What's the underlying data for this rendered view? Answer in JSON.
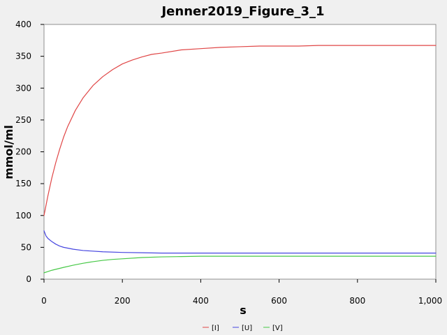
{
  "chart_data": {
    "type": "line",
    "title": "Jenner2019_Figure_3_1",
    "xlabel": "s",
    "ylabel": "mmol/ml",
    "xlim": [
      0,
      1000
    ],
    "ylim": [
      0,
      400
    ],
    "x_ticks": [
      0,
      200,
      400,
      600,
      800,
      1000
    ],
    "x_tick_labels": [
      "0",
      "200",
      "400",
      "600",
      "800",
      "1,000"
    ],
    "y_ticks": [
      0,
      50,
      100,
      150,
      200,
      250,
      300,
      350,
      400
    ],
    "y_tick_labels": [
      "0",
      "50",
      "100",
      "150",
      "200",
      "250",
      "300",
      "350",
      "400"
    ],
    "grid": false,
    "legend_position": "bottom",
    "series": [
      {
        "name": "[I]",
        "color": "#e04646",
        "x": [
          0,
          10,
          20,
          30,
          40,
          50,
          60,
          80,
          100,
          125,
          150,
          175,
          200,
          225,
          250,
          275,
          300,
          350,
          400,
          450,
          500,
          550,
          600,
          650,
          700,
          800,
          900,
          1000
        ],
        "values": [
          100,
          131,
          159,
          183,
          204,
          223,
          239,
          265,
          285,
          304,
          318,
          329,
          338,
          344,
          349,
          353,
          355,
          360,
          362,
          364,
          365,
          366,
          366,
          366,
          367,
          367,
          367,
          367
        ]
      },
      {
        "name": "[U]",
        "color": "#4646e0",
        "x": [
          0,
          5,
          10,
          20,
          30,
          40,
          50,
          75,
          100,
          150,
          200,
          250,
          300,
          350,
          400,
          500,
          600,
          700,
          800,
          900,
          1000
        ],
        "values": [
          76,
          68,
          64,
          59,
          55,
          52,
          50,
          47,
          45,
          43,
          42,
          41.5,
          41,
          41,
          41,
          41,
          41,
          41,
          41,
          41,
          41
        ]
      },
      {
        "name": "[V]",
        "color": "#46c846",
        "x": [
          0,
          10,
          20,
          30,
          40,
          50,
          75,
          100,
          125,
          150,
          175,
          200,
          250,
          300,
          350,
          400,
          500,
          600,
          700,
          800,
          900,
          1000
        ],
        "values": [
          10,
          12,
          14,
          15.5,
          17,
          18.5,
          22,
          25,
          27.5,
          29.5,
          31,
          32,
          34,
          35,
          35.5,
          36,
          36,
          36,
          36,
          36,
          36,
          36
        ]
      }
    ]
  }
}
